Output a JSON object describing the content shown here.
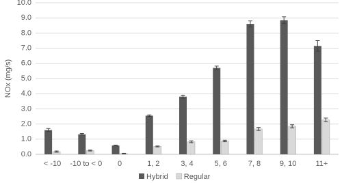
{
  "chart_data": {
    "type": "bar",
    "y_label": "NOx (mg/s)",
    "categories": [
      "< -10",
      "-10 to < 0",
      "0",
      "1,  2",
      "3, 4",
      "5, 6",
      "7, 8",
      "9, 10",
      "11+"
    ],
    "series": [
      {
        "name": "Hybrid",
        "color": "#595959",
        "values": [
          1.6,
          1.32,
          0.58,
          2.55,
          3.8,
          5.7,
          8.6,
          8.85,
          7.15
        ],
        "errors": [
          0.1,
          0.05,
          0.03,
          0.05,
          0.1,
          0.12,
          0.2,
          0.22,
          0.35
        ]
      },
      {
        "name": "Regular",
        "color": "#d9d9d9",
        "values": [
          0.18,
          0.25,
          0.05,
          0.52,
          0.83,
          0.88,
          1.67,
          1.85,
          2.27
        ],
        "errors": [
          0.04,
          0.03,
          0.02,
          0.03,
          0.06,
          0.05,
          0.1,
          0.1,
          0.12
        ]
      }
    ],
    "ylim": [
      0,
      10
    ],
    "yticks": [
      {
        "value": 0,
        "label": "0.0"
      },
      {
        "value": 1,
        "label": "1.0"
      },
      {
        "value": 2,
        "label": "2.0"
      },
      {
        "value": 3,
        "label": "3.0"
      },
      {
        "value": 4,
        "label": "4.0"
      },
      {
        "value": 5,
        "label": "5.0"
      },
      {
        "value": 6,
        "label": "6.0"
      },
      {
        "value": 7,
        "label": "7.0"
      },
      {
        "value": 8,
        "label": "8.0"
      },
      {
        "value": 9,
        "label": "9.0"
      },
      {
        "value": 10,
        "label": "10.0"
      }
    ],
    "grid": true
  }
}
